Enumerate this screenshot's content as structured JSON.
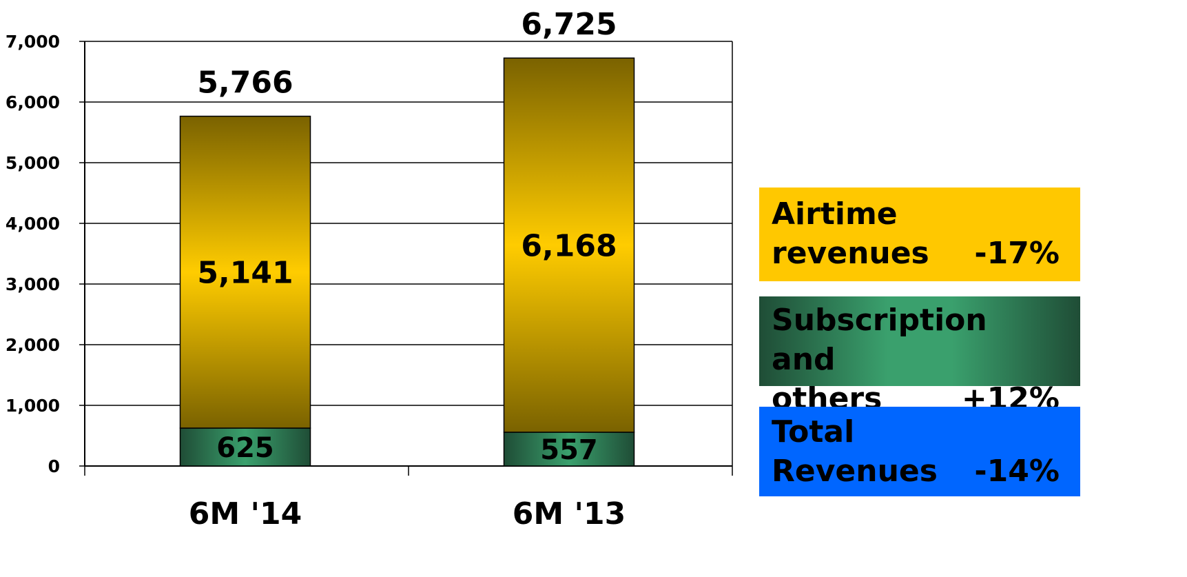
{
  "chart_data": {
    "type": "bar",
    "stacked": true,
    "categories": [
      "6M '14",
      "6M '13"
    ],
    "series": [
      {
        "name": "Subscription and others",
        "values": [
          625,
          557
        ],
        "labels": [
          "625",
          "557"
        ]
      },
      {
        "name": "Airtime revenues",
        "values": [
          5141,
          6168
        ],
        "labels": [
          "5,141",
          "6,168"
        ]
      }
    ],
    "totals": [
      5766,
      6725
    ],
    "total_labels": [
      "5,766",
      "6,725"
    ],
    "ylim": [
      0,
      7000
    ],
    "y_ticks": [
      0,
      1000,
      2000,
      3000,
      4000,
      5000,
      6000,
      7000
    ],
    "y_tick_labels": [
      "0",
      "1,000",
      "2,000",
      "3,000",
      "4,000",
      "5,000",
      "6,000",
      "7,000"
    ],
    "grid": true,
    "legend_position": "right"
  },
  "legend": {
    "airtime": {
      "line1": "Airtime",
      "line2_label": "revenues",
      "change": "-17%"
    },
    "subscription": {
      "line1": "Subscription and",
      "line2_label": "others",
      "change": "+12%"
    },
    "total": {
      "line1": "Total",
      "line2_label": "Revenues",
      "change": "-14%"
    }
  },
  "colors": {
    "airtime_top": "#7a6200",
    "airtime_mid": "#ffcc00",
    "subscription_dark": "#1f4d36",
    "subscription_light": "#3aa06d",
    "total_box": "#0066ff",
    "airtime_box": "#ffc800"
  }
}
